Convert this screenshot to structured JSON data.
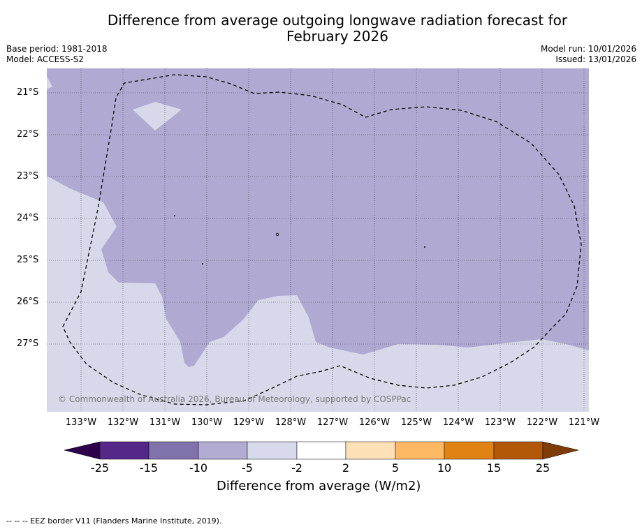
{
  "title": {
    "line1": "Difference from average outgoing longwave radiation forecast for",
    "line2": "February 2026"
  },
  "meta": {
    "base_period": "Base period: 1981-2018",
    "model": "Model: ACCESS-S2",
    "model_run": "Model run: 10/01/2026",
    "issued": "Issued: 13/01/2026"
  },
  "map": {
    "latitude_labels": [
      "21°S",
      "22°S",
      "23°S",
      "24°S",
      "25°S",
      "26°S",
      "27°S"
    ],
    "longitude_labels": [
      "133°W",
      "132°W",
      "131°W",
      "130°W",
      "129°W",
      "128°W",
      "127°W",
      "126°W",
      "125°W",
      "124°W",
      "123°W",
      "122°W",
      "121°W"
    ],
    "copyright": "© Commonwealth of Australia 2026, Bureau of Meteorology, supported by COSPPac",
    "colors": {
      "anomaly_minus10_to_minus5": "#b0a9d2",
      "anomaly_minus5_to_minus2": "#d8d8ea",
      "eez_border": "#000000"
    }
  },
  "colorbar": {
    "title": "Difference from average (W/m2)",
    "ticks": [
      "-25",
      "-15",
      "-10",
      "-5",
      "-2",
      "2",
      "5",
      "10",
      "15",
      "25"
    ],
    "colors": [
      "#2d004b",
      "#542788",
      "#8073ac",
      "#b2abd2",
      "#d8daeb",
      "#ffffff",
      "#fee0b6",
      "#fdb863",
      "#e08214",
      "#b35806",
      "#7f3b08"
    ]
  },
  "footnote": "--  --  -- EEZ border V11 (Flanders Marine Institute, 2019)."
}
